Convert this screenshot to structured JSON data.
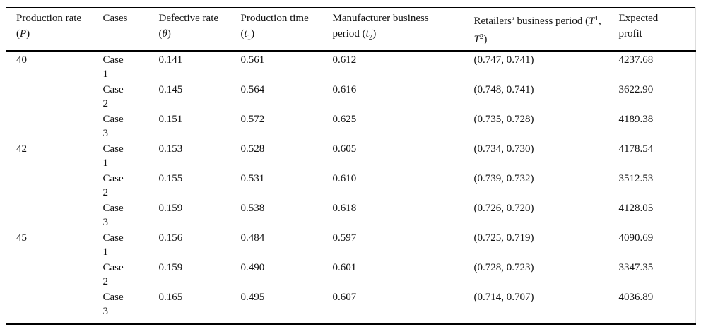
{
  "table": {
    "colors": {
      "rule": "#000000",
      "side_border": "#dddddd",
      "text": "#111111",
      "background": "#ffffff"
    },
    "header": {
      "cols": [
        {
          "id": "production-rate",
          "parts": [
            {
              "t": "Production rate"
            },
            {
              "s": "br"
            },
            {
              "t": "("
            },
            {
              "t": "P",
              "s": "var"
            },
            {
              "t": ")"
            }
          ]
        },
        {
          "id": "cases",
          "parts": [
            {
              "t": "Cases"
            }
          ]
        },
        {
          "id": "defective-rate",
          "parts": [
            {
              "t": "Defective rate"
            },
            {
              "s": "br"
            },
            {
              "t": "("
            },
            {
              "t": "θ",
              "s": "var"
            },
            {
              "t": ")"
            }
          ]
        },
        {
          "id": "production-time",
          "parts": [
            {
              "t": "Production time"
            },
            {
              "s": "br"
            },
            {
              "t": "("
            },
            {
              "t": "t",
              "s": "var"
            },
            {
              "t": "1",
              "s": "sub"
            },
            {
              "t": ")"
            }
          ]
        },
        {
          "id": "manufacturer-business-period",
          "parts": [
            {
              "t": "Manufacturer business"
            },
            {
              "s": "br"
            },
            {
              "t": "period ("
            },
            {
              "t": "t",
              "s": "var"
            },
            {
              "t": "2",
              "s": "sub"
            },
            {
              "t": ")"
            }
          ]
        },
        {
          "id": "retailers-business-period",
          "parts": [
            {
              "t": "Retailers’ business period ("
            },
            {
              "t": "T",
              "s": "var"
            },
            {
              "t": "1",
              "s": "sup"
            },
            {
              "t": ","
            },
            {
              "s": "br"
            },
            {
              "t": "T",
              "s": "var"
            },
            {
              "t": "2",
              "s": "sup"
            },
            {
              "t": ")"
            }
          ]
        },
        {
          "id": "expected-profit",
          "parts": [
            {
              "t": "Expected"
            },
            {
              "s": "br"
            },
            {
              "t": "profit"
            }
          ]
        }
      ]
    },
    "rows": [
      {
        "p": "40",
        "case": "Case\n1",
        "theta": "0.141",
        "t1": "0.561",
        "t2": "0.612",
        "retail": "(0.747, 0.741)",
        "profit": "4237.68"
      },
      {
        "p": "",
        "case": "Case\n2",
        "theta": "0.145",
        "t1": "0.564",
        "t2": "0.616",
        "retail": "(0.748, 0.741)",
        "profit": "3622.90"
      },
      {
        "p": "",
        "case": "Case\n3",
        "theta": "0.151",
        "t1": "0.572",
        "t2": "0.625",
        "retail": "(0.735, 0.728)",
        "profit": "4189.38"
      },
      {
        "p": "42",
        "case": "Case\n1",
        "theta": "0.153",
        "t1": "0.528",
        "t2": "0.605",
        "retail": "(0.734, 0.730)",
        "profit": "4178.54"
      },
      {
        "p": "",
        "case": "Case\n2",
        "theta": "0.155",
        "t1": "0.531",
        "t2": "0.610",
        "retail": "(0.739, 0.732)",
        "profit": "3512.53"
      },
      {
        "p": "",
        "case": "Case\n3",
        "theta": "0.159",
        "t1": "0.538",
        "t2": "0.618",
        "retail": "(0.726, 0.720)",
        "profit": "4128.05"
      },
      {
        "p": "45",
        "case": "Case\n1",
        "theta": "0.156",
        "t1": "0.484",
        "t2": "0.597",
        "retail": "(0.725, 0.719)",
        "profit": "4090.69"
      },
      {
        "p": "",
        "case": "Case\n2",
        "theta": "0.159",
        "t1": "0.490",
        "t2": "0.601",
        "retail": "(0.728, 0.723)",
        "profit": "3347.35"
      },
      {
        "p": "",
        "case": "Case\n3",
        "theta": "0.165",
        "t1": "0.495",
        "t2": "0.607",
        "retail": "(0.714, 0.707)",
        "profit": "4036.89"
      }
    ]
  }
}
